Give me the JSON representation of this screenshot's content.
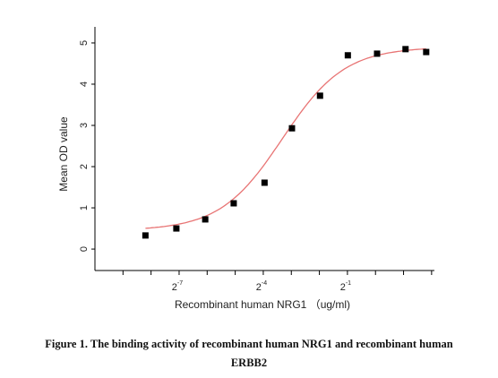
{
  "chart_data": {
    "type": "scatter",
    "x_label": "Recombinant human NRG1 （ug/ml)",
    "y_label": "Mean OD value",
    "caption": [
      "Figure 1. The binding activity of recombinant human NRG1 and recombinant human",
      "ERBB2"
    ],
    "x_scale": "log2",
    "x": [
      0.0034,
      0.0073,
      0.0149,
      0.0301,
      0.0645,
      0.127,
      0.254,
      0.505,
      1.04,
      2.1,
      3.5
    ],
    "series": [
      {
        "color": "#000000",
        "values": [
          0.33,
          0.5,
          0.72,
          1.11,
          1.61,
          2.93,
          3.72,
          4.7,
          4.74,
          4.85,
          4.78
        ]
      }
    ],
    "fit": {
      "color": "#e87474",
      "bottom": 0.45,
      "top": 4.9,
      "ec50": 0.1,
      "hill": 1.3
    },
    "xlim": [
      0.0009765625,
      4.287
    ],
    "xticks": [
      {
        "value": 0.0078125,
        "label": "2",
        "exponent": "-7"
      },
      {
        "value": 0.0625,
        "label": "2",
        "exponent": "-4"
      },
      {
        "value": 0.5,
        "label": "2",
        "exponent": "-1"
      }
    ],
    "xminor_ticks": [
      0.001953125,
      0.00390625,
      0.015625,
      0.03125,
      0.125,
      0.25,
      1,
      2,
      4
    ],
    "ylim": [
      -0.52,
      5.39
    ],
    "yticks": [
      0,
      1,
      2,
      3,
      4,
      5
    ]
  }
}
